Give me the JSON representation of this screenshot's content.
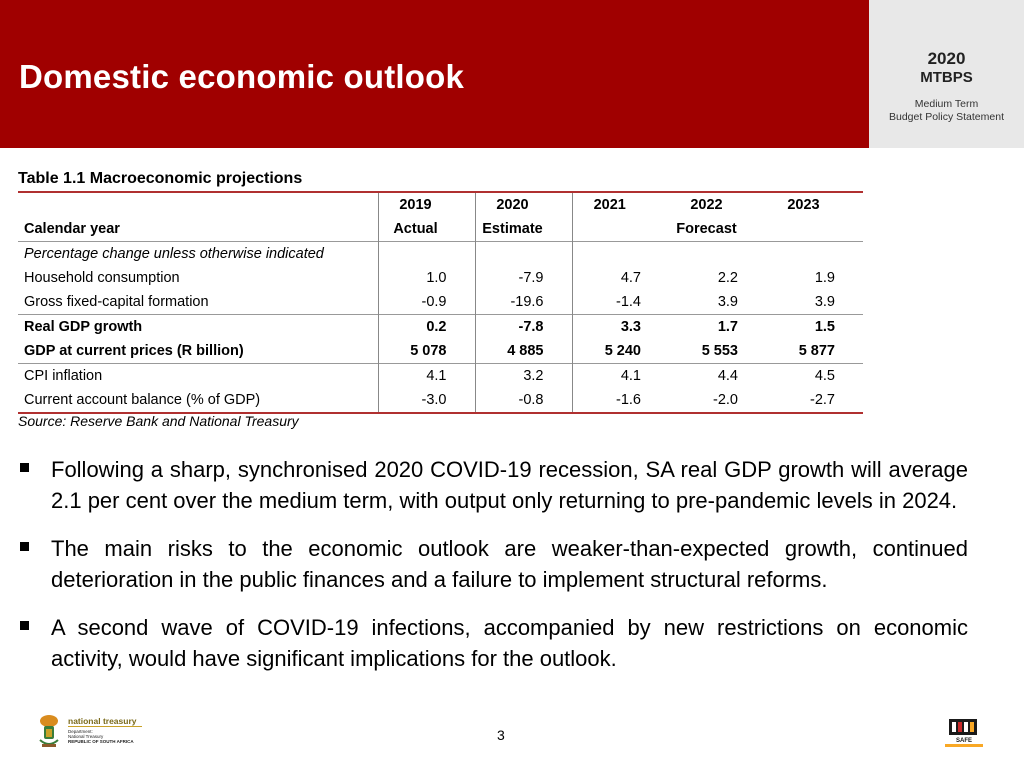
{
  "header": {
    "title": "Domestic economic outlook",
    "badge_year": "2020",
    "badge_abbr": "MTBPS",
    "badge_line1": "Medium Term",
    "badge_line2": "Budget Policy Statement"
  },
  "table": {
    "title": "Table 1.1  Macroeconomic projections",
    "years": [
      "2019",
      "2020",
      "2021",
      "2022",
      "2023"
    ],
    "row_label": "Calendar year",
    "sub_actual": "Actual",
    "sub_estimate": "Estimate",
    "sub_forecast": "Forecast",
    "note": "Percentage change unless otherwise indicated",
    "rows": [
      {
        "label": "Household consumption",
        "values": [
          "1.0",
          "-7.9",
          "4.7",
          "2.2",
          "1.9"
        ]
      },
      {
        "label": "Gross fixed-capital formation",
        "values": [
          "-0.9",
          "-19.6",
          "-1.4",
          "3.9",
          "3.9"
        ]
      },
      {
        "label": "Real GDP growth",
        "values": [
          "0.2",
          "-7.8",
          "3.3",
          "1.7",
          "1.5"
        ]
      },
      {
        "label": "GDP at current prices (R billion)",
        "values": [
          "5 078",
          "4 885",
          "5 240",
          "5 553",
          "5 877"
        ]
      },
      {
        "label": "CPI inflation",
        "values": [
          "4.1",
          "3.2",
          "4.1",
          "4.4",
          "4.5"
        ]
      },
      {
        "label": "Current account balance (% of GDP)",
        "values": [
          "-3.0",
          "-0.8",
          "-1.6",
          "-2.0",
          "-2.7"
        ]
      }
    ],
    "source": "Source: Reserve Bank and National Treasury"
  },
  "bullets": [
    "Following a sharp, synchronised 2020 COVID-19 recession, SA real GDP growth will average 2.1 per cent over the medium term, with output only returning to pre-pandemic levels in 2024.",
    "The main risks to the economic outlook are weaker-than-expected growth, continued deterioration in the public finances and a failure to implement structural reforms.",
    "A second wave of COVID-19 infections, accompanied by new restrictions on economic activity, would have significant implications for the outlook."
  ],
  "footer": {
    "logo_name": "national treasury",
    "logo_line1": "Department:",
    "logo_line2": "National Treasury",
    "logo_line3": "REPUBLIC OF SOUTH AFRICA",
    "page_number": "3",
    "stay_safe_label": "SAFE"
  },
  "colors": {
    "header_red": "#a00000",
    "rule_red": "#b03030",
    "badge_grey": "#e8e8e8"
  }
}
